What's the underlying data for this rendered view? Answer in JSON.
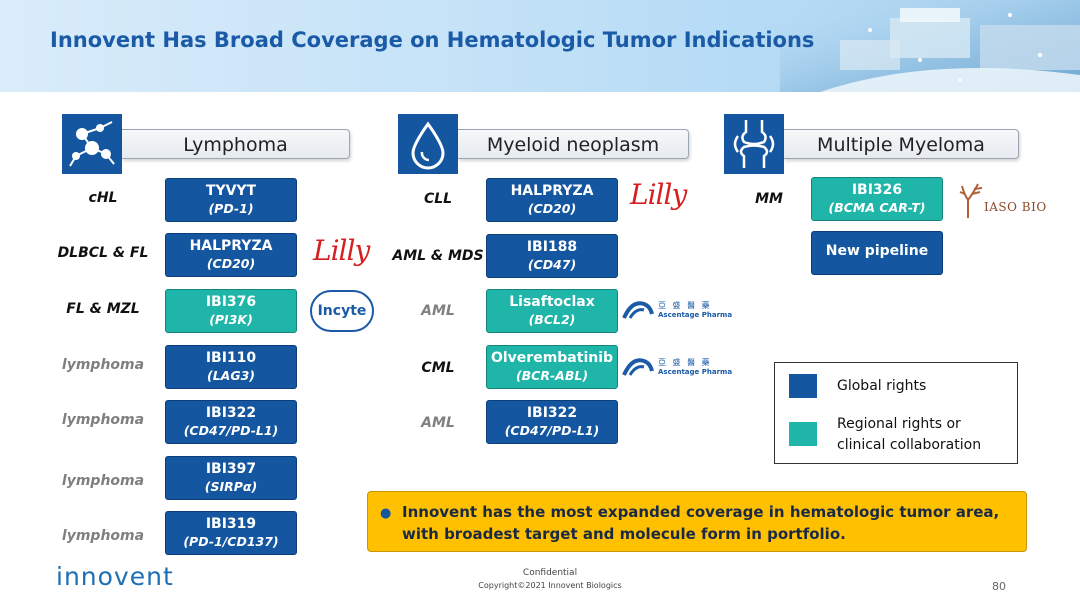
{
  "title": "Innovent Has Broad Coverage on Hematologic Tumor Indications",
  "sections": {
    "lymphoma": {
      "label": "Lymphoma",
      "rows": [
        {
          "indication": "cHL",
          "name": "TYVYT",
          "target": "(PD-1)"
        },
        {
          "indication": "DLBCL & FL",
          "name": "HALPRYZA",
          "target": "(CD20)"
        },
        {
          "indication": "FL & MZL",
          "name": "IBI376",
          "target": "(PI3K)"
        },
        {
          "indication": "lymphoma",
          "name": "IBI110",
          "target": "(LAG3)"
        },
        {
          "indication": "lymphoma",
          "name": "IBI322",
          "target": "(CD47/PD-L1)"
        },
        {
          "indication": "lymphoma",
          "name": "IBI397",
          "target": "(SIRPα)"
        },
        {
          "indication": "lymphoma",
          "name": "IBI319",
          "target": "(PD-1/CD137)"
        }
      ]
    },
    "myeloid": {
      "label": "Myeloid neoplasm",
      "rows": [
        {
          "indication": "CLL",
          "name": "HALPRYZA",
          "target": "(CD20)"
        },
        {
          "indication": "AML & MDS",
          "name": "IBI188",
          "target": "(CD47)"
        },
        {
          "indication": "AML",
          "name": "Lisaftoclax",
          "target": "(BCL2)"
        },
        {
          "indication": "CML",
          "name": "Olverembatinib",
          "target": "(BCR-ABL)"
        },
        {
          "indication": "AML",
          "name": "IBI322",
          "target": "(CD47/PD-L1)"
        }
      ]
    },
    "myeloma": {
      "label": "Multiple Myeloma",
      "rows": [
        {
          "indication": "MM",
          "name": "IBI326",
          "target": "(BCMA CAR-T)"
        },
        {
          "name": "New pipeline"
        }
      ]
    }
  },
  "partners": {
    "lilly": "Lilly",
    "incyte": "Incyte",
    "ascentage": {
      "cn": "亞 盛 醫 藥",
      "en": "Ascentage Pharma"
    },
    "iaso": "IASO BIO"
  },
  "legend": {
    "global": "Global rights",
    "regional_line1": "Regional rights or",
    "regional_line2": "clinical collaboration"
  },
  "colors": {
    "global": "#1456a0",
    "regional": "#1fb5a8",
    "callout": "#ffc000",
    "title": "#1a5aa6"
  },
  "callout": {
    "line1": "Innovent has the most expanded coverage in hematologic tumor area,",
    "line2": "with broadest target and molecule form in portfolio."
  },
  "footer": {
    "brand": "innovent",
    "confidential": "Confidential",
    "copyright": "Copyright©2021  Innovent Biologics",
    "page": "80"
  },
  "icons": [
    "lymphocyte-icon",
    "droplet-icon",
    "bone-joint-icon"
  ]
}
